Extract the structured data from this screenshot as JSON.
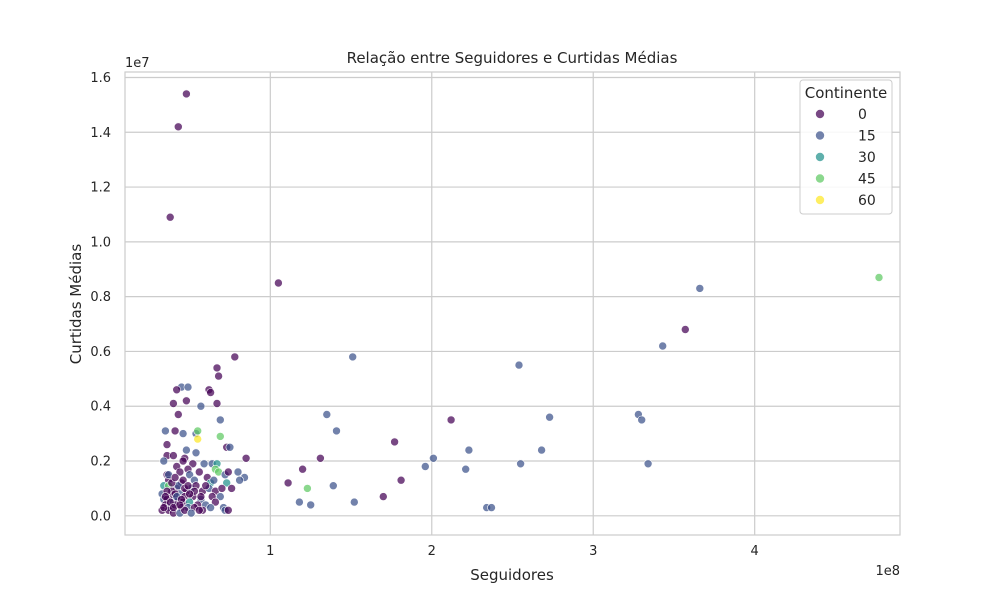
{
  "chart_data": {
    "type": "scatter",
    "title": "Relação entre Seguidores e Curtidas Médias",
    "xlabel": "Seguidores",
    "ylabel": "Curtidas Médias",
    "x_offset_text": "1e8",
    "y_offset_text": "1e7",
    "x_scale": 100000000,
    "y_scale": 10000000,
    "xlim": [
      0.1,
      4.9
    ],
    "ylim": [
      -0.07,
      1.62
    ],
    "xticks": [
      1,
      2,
      3,
      4
    ],
    "xtick_labels": [
      "1",
      "2",
      "3",
      "4"
    ],
    "yticks": [
      0.0,
      0.2,
      0.4,
      0.6,
      0.8,
      1.0,
      1.2,
      1.4,
      1.6
    ],
    "ytick_labels": [
      "0.0",
      "0.2",
      "0.4",
      "0.6",
      "0.8",
      "1.0",
      "1.2",
      "1.4",
      "1.6"
    ],
    "grid": true,
    "legend": {
      "title": "Continente",
      "placement": "top-right",
      "entries": [
        {
          "label": "0",
          "color": "#440154"
        },
        {
          "label": "15",
          "color": "#3b528b"
        },
        {
          "label": "30",
          "color": "#21918c"
        },
        {
          "label": "45",
          "color": "#5ec962"
        },
        {
          "label": "60",
          "color": "#fde725"
        }
      ]
    },
    "colors": {
      "0": "#440154",
      "15": "#3b528b",
      "30": "#21918c",
      "45": "#5ec962",
      "60": "#fde725"
    },
    "points": [
      [
        0.48,
        1.54,
        0
      ],
      [
        0.43,
        1.42,
        0
      ],
      [
        0.38,
        1.09,
        0
      ],
      [
        1.05,
        0.85,
        0
      ],
      [
        4.77,
        0.87,
        45
      ],
      [
        3.66,
        0.83,
        15
      ],
      [
        3.57,
        0.68,
        0
      ],
      [
        3.43,
        0.62,
        15
      ],
      [
        1.51,
        0.58,
        15
      ],
      [
        2.54,
        0.55,
        15
      ],
      [
        0.78,
        0.58,
        0
      ],
      [
        0.67,
        0.54,
        0
      ],
      [
        0.68,
        0.51,
        0
      ],
      [
        0.45,
        0.47,
        15
      ],
      [
        0.49,
        0.47,
        15
      ],
      [
        0.42,
        0.46,
        0
      ],
      [
        0.62,
        0.46,
        0
      ],
      [
        0.63,
        0.45,
        0
      ],
      [
        0.48,
        0.42,
        0
      ],
      [
        0.4,
        0.41,
        0
      ],
      [
        0.67,
        0.41,
        0
      ],
      [
        0.57,
        0.4,
        15
      ],
      [
        0.43,
        0.37,
        0
      ],
      [
        0.69,
        0.35,
        15
      ],
      [
        1.35,
        0.37,
        15
      ],
      [
        2.12,
        0.35,
        0
      ],
      [
        2.73,
        0.36,
        15
      ],
      [
        3.28,
        0.37,
        15
      ],
      [
        3.3,
        0.35,
        15
      ],
      [
        0.35,
        0.31,
        15
      ],
      [
        0.41,
        0.31,
        0
      ],
      [
        0.46,
        0.3,
        15
      ],
      [
        0.54,
        0.3,
        15
      ],
      [
        0.55,
        0.31,
        45
      ],
      [
        0.69,
        0.29,
        45
      ],
      [
        1.41,
        0.31,
        15
      ],
      [
        0.55,
        0.28,
        60
      ],
      [
        1.77,
        0.27,
        0
      ],
      [
        0.36,
        0.26,
        0
      ],
      [
        0.48,
        0.24,
        15
      ],
      [
        0.73,
        0.25,
        0
      ],
      [
        0.75,
        0.25,
        15
      ],
      [
        2.23,
        0.24,
        15
      ],
      [
        2.68,
        0.24,
        15
      ],
      [
        0.36,
        0.22,
        0
      ],
      [
        0.4,
        0.22,
        0
      ],
      [
        0.47,
        0.21,
        0
      ],
      [
        0.54,
        0.23,
        15
      ],
      [
        0.85,
        0.21,
        0
      ],
      [
        1.31,
        0.21,
        0
      ],
      [
        2.01,
        0.21,
        15
      ],
      [
        0.34,
        0.2,
        15
      ],
      [
        0.46,
        0.2,
        0
      ],
      [
        0.52,
        0.19,
        0
      ],
      [
        0.59,
        0.19,
        15
      ],
      [
        0.64,
        0.19,
        15
      ],
      [
        0.67,
        0.19,
        30
      ],
      [
        2.55,
        0.19,
        15
      ],
      [
        3.34,
        0.19,
        15
      ],
      [
        0.42,
        0.18,
        0
      ],
      [
        0.49,
        0.17,
        0
      ],
      [
        0.56,
        0.16,
        0
      ],
      [
        0.66,
        0.17,
        45
      ],
      [
        0.68,
        0.16,
        45
      ],
      [
        0.72,
        0.15,
        15
      ],
      [
        0.8,
        0.16,
        15
      ],
      [
        1.2,
        0.17,
        0
      ],
      [
        1.96,
        0.18,
        15
      ],
      [
        2.21,
        0.17,
        15
      ],
      [
        0.36,
        0.15,
        0
      ],
      [
        0.44,
        0.16,
        0
      ],
      [
        0.5,
        0.15,
        15
      ],
      [
        0.61,
        0.14,
        0
      ],
      [
        0.74,
        0.16,
        0
      ],
      [
        0.84,
        0.14,
        15
      ],
      [
        1.81,
        0.13,
        0
      ],
      [
        0.37,
        0.13,
        0
      ],
      [
        0.45,
        0.12,
        0
      ],
      [
        0.53,
        0.13,
        15
      ],
      [
        0.63,
        0.12,
        30
      ],
      [
        0.73,
        0.12,
        30
      ],
      [
        0.81,
        0.13,
        15
      ],
      [
        1.11,
        0.12,
        0
      ],
      [
        1.39,
        0.11,
        15
      ],
      [
        0.34,
        0.11,
        30
      ],
      [
        0.37,
        0.11,
        45
      ],
      [
        0.42,
        0.1,
        0
      ],
      [
        0.48,
        0.09,
        0
      ],
      [
        0.51,
        0.1,
        15
      ],
      [
        0.54,
        0.11,
        0
      ],
      [
        0.58,
        0.09,
        0
      ],
      [
        0.62,
        0.1,
        15
      ],
      [
        0.66,
        0.09,
        0
      ],
      [
        0.7,
        0.1,
        0
      ],
      [
        0.76,
        0.1,
        0
      ],
      [
        1.23,
        0.1,
        45
      ],
      [
        0.33,
        0.08,
        15
      ],
      [
        0.39,
        0.07,
        0
      ],
      [
        0.44,
        0.08,
        15
      ],
      [
        0.47,
        0.07,
        0
      ],
      [
        0.52,
        0.07,
        0
      ],
      [
        0.57,
        0.06,
        15
      ],
      [
        0.64,
        0.07,
        0
      ],
      [
        0.69,
        0.07,
        15
      ],
      [
        1.7,
        0.07,
        0
      ],
      [
        0.34,
        0.06,
        15
      ],
      [
        0.36,
        0.06,
        0
      ],
      [
        0.4,
        0.05,
        15
      ],
      [
        0.43,
        0.06,
        0
      ],
      [
        0.46,
        0.05,
        0
      ],
      [
        0.5,
        0.05,
        30
      ],
      [
        0.55,
        0.04,
        0
      ],
      [
        0.6,
        0.04,
        15
      ],
      [
        0.66,
        0.05,
        0
      ],
      [
        1.18,
        0.05,
        15
      ],
      [
        1.52,
        0.05,
        15
      ],
      [
        0.35,
        0.04,
        0
      ],
      [
        0.38,
        0.03,
        15
      ],
      [
        0.41,
        0.04,
        0
      ],
      [
        0.45,
        0.03,
        0
      ],
      [
        0.49,
        0.03,
        15
      ],
      [
        0.53,
        0.03,
        0
      ],
      [
        0.58,
        0.02,
        0
      ],
      [
        0.63,
        0.03,
        15
      ],
      [
        0.71,
        0.03,
        15
      ],
      [
        1.25,
        0.04,
        15
      ],
      [
        0.33,
        0.02,
        0
      ],
      [
        0.37,
        0.02,
        0
      ],
      [
        0.4,
        0.01,
        0
      ],
      [
        0.44,
        0.01,
        15
      ],
      [
        0.47,
        0.02,
        0
      ],
      [
        0.51,
        0.01,
        15
      ],
      [
        0.72,
        0.02,
        15
      ],
      [
        0.74,
        0.02,
        0
      ],
      [
        2.34,
        0.03,
        15
      ],
      [
        2.37,
        0.03,
        15
      ],
      [
        0.34,
        0.03,
        0
      ],
      [
        0.39,
        0.09,
        0
      ],
      [
        0.43,
        0.11,
        15
      ],
      [
        0.46,
        0.13,
        0
      ],
      [
        0.41,
        0.08,
        0
      ],
      [
        0.38,
        0.05,
        0
      ],
      [
        0.47,
        0.1,
        0
      ],
      [
        0.53,
        0.09,
        0
      ],
      [
        0.42,
        0.07,
        15
      ],
      [
        0.36,
        0.09,
        0
      ],
      [
        0.39,
        0.12,
        0
      ],
      [
        0.45,
        0.06,
        0
      ],
      [
        0.5,
        0.08,
        0
      ],
      [
        0.4,
        0.03,
        0
      ],
      [
        0.35,
        0.07,
        0
      ],
      [
        0.44,
        0.04,
        0
      ],
      [
        0.49,
        0.11,
        0
      ],
      [
        0.37,
        0.15,
        15
      ],
      [
        0.41,
        0.14,
        0
      ],
      [
        0.57,
        0.07,
        0
      ],
      [
        0.6,
        0.11,
        0
      ],
      [
        0.65,
        0.13,
        15
      ],
      [
        0.56,
        0.02,
        0
      ]
    ]
  }
}
